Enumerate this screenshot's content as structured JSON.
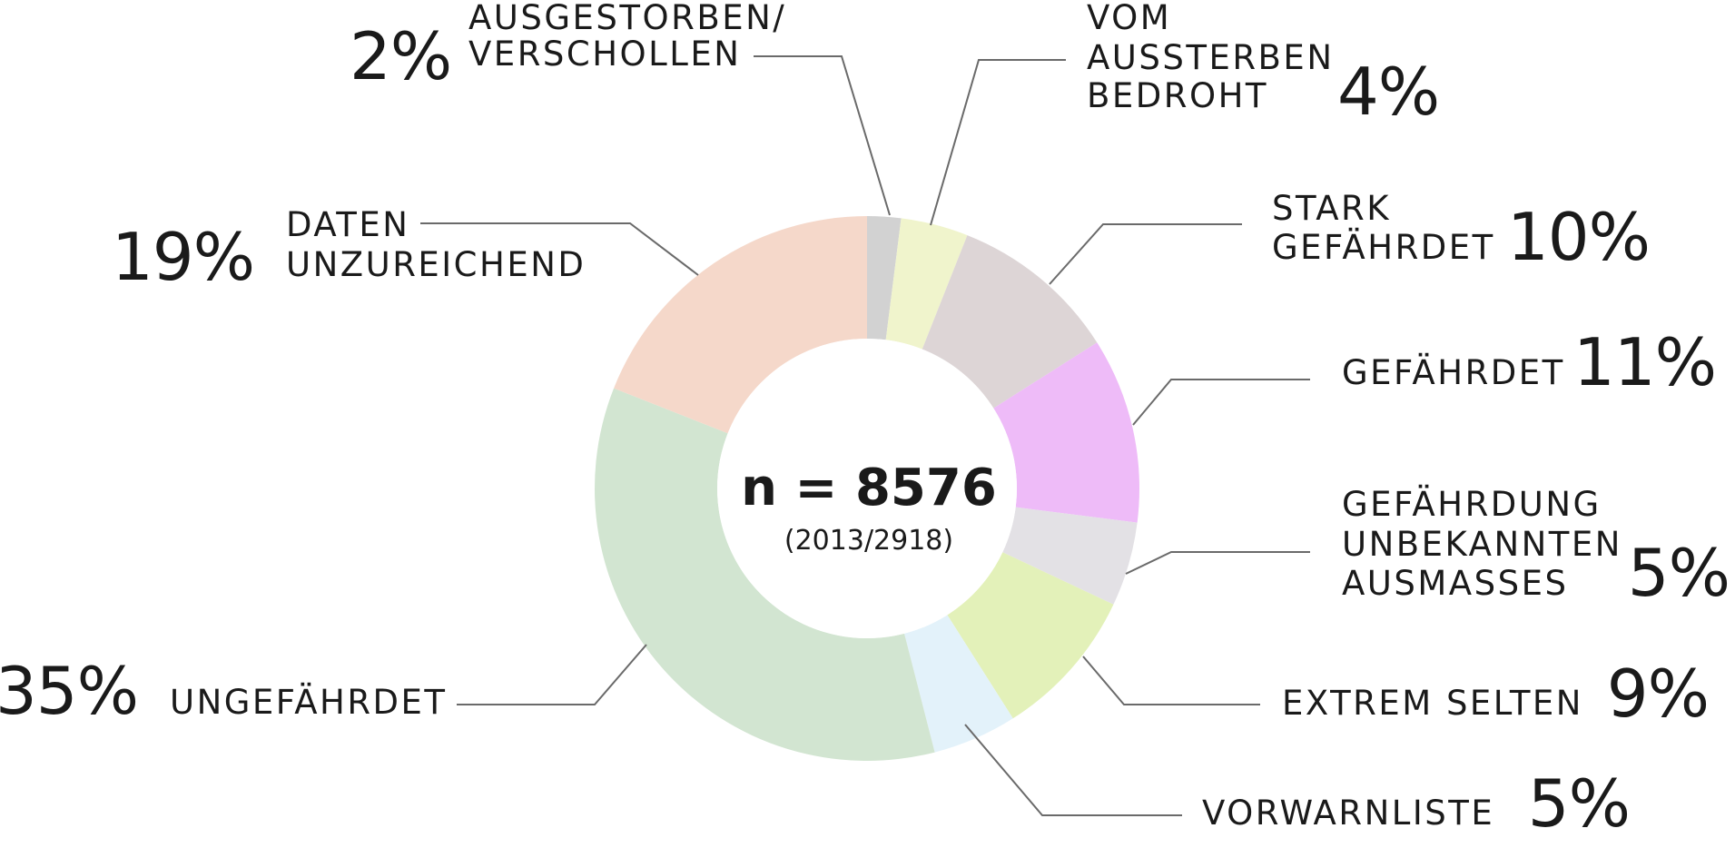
{
  "chart_data": {
    "type": "pie",
    "center": {
      "n_label": "n = 8576",
      "sub_label": "(2013/2918)"
    },
    "slices": [
      {
        "label_lines": [
          "AUSGESTORBEN/",
          "VERSCHOLLEN"
        ],
        "percent_label": "2%",
        "value": 2,
        "color": "#d2d2d2"
      },
      {
        "label_lines": [
          "VOM",
          "AUSSTERBEN",
          "BEDROHT"
        ],
        "percent_label": "4%",
        "value": 4,
        "color": "#f0f4cc"
      },
      {
        "label_lines": [
          "STARK",
          "GEFÄHRDET"
        ],
        "percent_label": "10%",
        "value": 10,
        "color": "#ddd5d6"
      },
      {
        "label_lines": [
          "GEFÄHRDET"
        ],
        "percent_label": "11%",
        "value": 11,
        "color": "#eebbf8"
      },
      {
        "label_lines": [
          "GEFÄHRDUNG",
          "UNBEKANNTEN",
          "AUSMASSES"
        ],
        "percent_label": "5%",
        "value": 5,
        "color": "#e3e1e5"
      },
      {
        "label_lines": [
          "EXTREM SELTEN"
        ],
        "percent_label": "9%",
        "value": 9,
        "color": "#e3f1b9"
      },
      {
        "label_lines": [
          "VORWARNLISTE"
        ],
        "percent_label": "5%",
        "value": 5,
        "color": "#e3f2fa"
      },
      {
        "label_lines": [
          "UNGEFÄHRDET"
        ],
        "percent_label": "35%",
        "value": 35,
        "color": "#d2e5d1"
      },
      {
        "label_lines": [
          "DATEN",
          "UNZUREICHEND"
        ],
        "percent_label": "19%",
        "value": 19,
        "color": "#f5d8ca"
      }
    ]
  }
}
